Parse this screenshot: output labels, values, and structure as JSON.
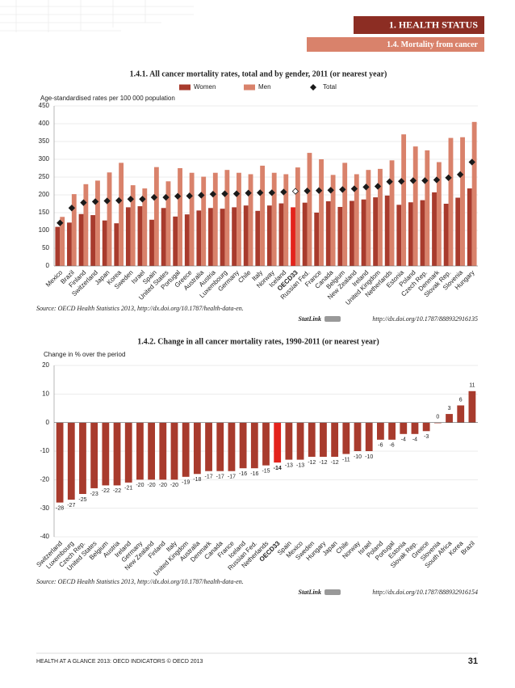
{
  "header": {
    "chapter": "1. HEALTH STATUS",
    "section": "1.4. Mortality from cancer"
  },
  "chart_data": [
    {
      "type": "bar",
      "title": "1.4.1. All cancer mortality rates, total and by gender, 2011 (or nearest year)",
      "y_label": "Age-standardised rates per 100 000 population",
      "categories": [
        "Mexico",
        "Brazil",
        "Finland",
        "Switzerland",
        "Japan",
        "Korea",
        "Sweden",
        "Israel",
        "Spain",
        "United States",
        "Portugal",
        "Greece",
        "Australia",
        "Austria",
        "Luxembourg",
        "Germany",
        "Chile",
        "Italy",
        "Norway",
        "Iceland",
        "OECD33",
        "Russian Fed.",
        "France",
        "Canada",
        "Belgium",
        "New Zealand",
        "Ireland",
        "United Kingdom",
        "Netherlands",
        "Estonia",
        "Poland",
        "Czech Rep.",
        "Denmark",
        "Slovak Rep.",
        "Slovenia",
        "Hungary"
      ],
      "series": [
        {
          "name": "Women",
          "color": "#a83b2d",
          "values": [
            110,
            122,
            146,
            143,
            128,
            120,
            165,
            168,
            130,
            163,
            139,
            145,
            156,
            163,
            161,
            165,
            170,
            155,
            170,
            176,
            165,
            178,
            150,
            182,
            166,
            183,
            187,
            193,
            198,
            172,
            179,
            185,
            207,
            175,
            192,
            218
          ]
        },
        {
          "name": "Men",
          "color": "#d9826b",
          "values": [
            138,
            202,
            230,
            240,
            263,
            290,
            227,
            218,
            278,
            238,
            275,
            262,
            251,
            262,
            270,
            262,
            258,
            282,
            262,
            258,
            277,
            318,
            300,
            256,
            290,
            258,
            270,
            273,
            297,
            370,
            336,
            325,
            292,
            360,
            362,
            405
          ]
        },
        {
          "name": "Total",
          "color": "#1a1a1a",
          "marker": "diamond",
          "values": [
            121,
            163,
            178,
            181,
            183,
            184,
            188,
            188,
            193,
            193,
            196,
            197,
            199,
            202,
            203,
            203,
            205,
            206,
            206,
            208,
            210,
            211,
            212,
            213,
            215,
            217,
            222,
            224,
            237,
            238,
            240,
            240,
            242,
            248,
            257,
            292
          ]
        }
      ],
      "highlight_index": 20,
      "highlight_color": "#e3231c",
      "ylim": [
        0,
        450
      ],
      "yticks": [
        0,
        50,
        100,
        150,
        200,
        250,
        300,
        350,
        400,
        450
      ],
      "grid": true,
      "legend": "top"
    },
    {
      "type": "bar",
      "title": "1.4.2. Change in all cancer mortality rates, 1990-2011 (or nearest year)",
      "y_label": "Change in % over the period",
      "categories": [
        "Switzerland",
        "Luxembourg",
        "Czech Rep.",
        "United States",
        "Belgium",
        "Austria",
        "Ireland",
        "Germany",
        "New Zealand",
        "Finland",
        "Italy",
        "United Kingdom",
        "Australia",
        "Denmark",
        "Canada",
        "France",
        "Iceland",
        "Russian Fed.",
        "Netherlands",
        "OECD33",
        "Spain",
        "Mexico",
        "Sweden",
        "Hungary",
        "Japan",
        "Chile",
        "Norway",
        "Israel",
        "Poland",
        "Portugal",
        "Estonia",
        "Slovak Rep.",
        "Greece",
        "Slovenia",
        "South Africa",
        "Korea",
        "Brazil"
      ],
      "values": [
        -28,
        -27,
        -25,
        -23,
        -22,
        -22,
        -21,
        -20,
        -20,
        -20,
        -20,
        -19,
        -18,
        -17,
        -17,
        -17,
        -16,
        -16,
        -15,
        -14,
        -13,
        -13,
        -12,
        -12,
        -12,
        -11,
        -10,
        -10,
        -6,
        -6,
        -4,
        -4,
        -3,
        0,
        3,
        6,
        11
      ],
      "color": "#a83b2d",
      "highlight_index": 19,
      "highlight_color": "#e3231c",
      "ylim": [
        -40,
        20
      ],
      "yticks": [
        -40,
        -30,
        -20,
        -10,
        0,
        10,
        20
      ],
      "grid": true
    }
  ],
  "notes": [
    {
      "source": "Source: OECD Health Statistics 2013, http://dx.doi.org/10.1787/health-data-en.",
      "statlink": "StatLink",
      "url": "http://dx.doi.org/10.1787/888932916135"
    },
    {
      "source": "Source: OECD Health Statistics 2013, http://dx.doi.org/10.1787/health-data-en.",
      "statlink": "StatLink",
      "url": "http://dx.doi.org/10.1787/888932916154"
    }
  ],
  "footer": {
    "text": "HEALTH AT A GLANCE 2013: OECD INDICATORS © OECD 2013",
    "page": 31
  }
}
